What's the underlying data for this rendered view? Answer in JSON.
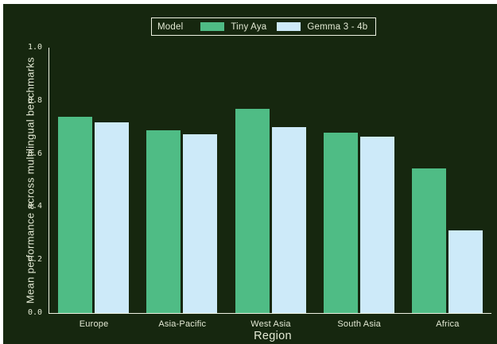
{
  "figure": {
    "background": "#16270f",
    "text_color": "#e3e9d4",
    "axis_color": "#edf1e1"
  },
  "chart_data": {
    "type": "bar",
    "title": "",
    "xlabel": "Region",
    "ylabel": "Mean performance across multilingual benchmarks",
    "ylim": [
      0.0,
      1.0
    ],
    "yticks": [
      0.0,
      0.2,
      0.4,
      0.6,
      0.8,
      1.0
    ],
    "grid": false,
    "legend": {
      "title": "Model",
      "position": "top-center"
    },
    "categories": [
      "Europe",
      "Asia-Pacific",
      "West Asia",
      "South Asia",
      "Africa"
    ],
    "series": [
      {
        "name": "Tiny Aya",
        "color": "#4fbc85",
        "values": [
          0.74,
          0.69,
          0.77,
          0.68,
          0.545
        ]
      },
      {
        "name": "Gemma 3 - 4b",
        "color": "#cdeaf9",
        "values": [
          0.72,
          0.675,
          0.7,
          0.665,
          0.31
        ]
      }
    ]
  }
}
